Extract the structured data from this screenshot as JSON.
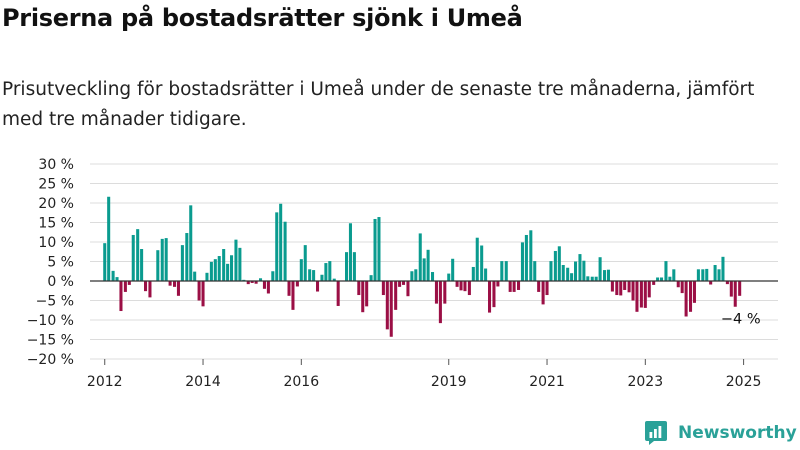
{
  "title": "Priserna på bostadsrätter sjönk i Umeå",
  "subtitle": "Prisutveckling för bostadsrätter i Umeå under de senaste tre månaderna, jämfört med tre månader tidigare.",
  "brand": {
    "name": "Newsworthy"
  },
  "colors": {
    "positive": "#0a9b8f",
    "negative": "#9b0f45",
    "grid": "#dcdcdc",
    "zero_line": "#333333",
    "brand": "#2aa198"
  },
  "chart_data": {
    "type": "bar",
    "unit": "%",
    "ylim": [
      -20,
      30
    ],
    "y_ticks": [
      30,
      25,
      20,
      15,
      10,
      5,
      0,
      -5,
      -10,
      -15,
      -20
    ],
    "y_tick_labels": [
      "30 %",
      "25 %",
      "20 %",
      "15 %",
      "10 %",
      "5 %",
      "0 %",
      "−5 %",
      "−10 %",
      "−15 %",
      "−20 %"
    ],
    "x_tick_labels": [
      "2012",
      "2014",
      "2016",
      "2019",
      "2021",
      "2023",
      "2025"
    ],
    "x_tick_positions": [
      2012,
      2014,
      2016,
      2019,
      2021,
      2023,
      2025
    ],
    "x_range": [
      2011.7,
      2025.7
    ],
    "bar_width_years": 0.062,
    "annotation": {
      "text": "−4 %",
      "x": 2024.92,
      "y": -4
    },
    "x": [
      2012.0,
      2012.08,
      2012.17,
      2012.25,
      2012.33,
      2012.42,
      2012.5,
      2012.58,
      2012.67,
      2012.75,
      2012.83,
      2012.92,
      2013.0,
      2013.08,
      2013.17,
      2013.25,
      2013.33,
      2013.42,
      2013.5,
      2013.58,
      2013.67,
      2013.75,
      2013.83,
      2013.92,
      2014.0,
      2014.08,
      2014.17,
      2014.25,
      2014.33,
      2014.42,
      2014.5,
      2014.58,
      2014.67,
      2014.75,
      2014.83,
      2014.92,
      2015.0,
      2015.08,
      2015.17,
      2015.25,
      2015.33,
      2015.42,
      2015.5,
      2015.58,
      2015.67,
      2015.75,
      2015.83,
      2015.92,
      2016.0,
      2016.08,
      2016.17,
      2016.25,
      2016.33,
      2016.42,
      2016.5,
      2016.58,
      2016.67,
      2016.75,
      2016.83,
      2016.92,
      2017.0,
      2017.08,
      2017.17,
      2017.25,
      2017.33,
      2017.42,
      2017.5,
      2017.58,
      2017.67,
      2017.75,
      2017.83,
      2017.92,
      2018.0,
      2018.08,
      2018.17,
      2018.25,
      2018.33,
      2018.42,
      2018.5,
      2018.58,
      2018.67,
      2018.75,
      2018.83,
      2018.92,
      2019.0,
      2019.08,
      2019.17,
      2019.25,
      2019.33,
      2019.42,
      2019.5,
      2019.58,
      2019.67,
      2019.75,
      2019.83,
      2019.92,
      2020.0,
      2020.08,
      2020.17,
      2020.25,
      2020.33,
      2020.42,
      2020.5,
      2020.58,
      2020.67,
      2020.75,
      2020.83,
      2020.92,
      2021.0,
      2021.08,
      2021.17,
      2021.25,
      2021.33,
      2021.42,
      2021.5,
      2021.58,
      2021.67,
      2021.75,
      2021.83,
      2021.92,
      2022.0,
      2022.08,
      2022.17,
      2022.25,
      2022.33,
      2022.42,
      2022.5,
      2022.58,
      2022.67,
      2022.75,
      2022.83,
      2022.92,
      2023.0,
      2023.08,
      2023.17,
      2023.25,
      2023.33,
      2023.42,
      2023.5,
      2023.58,
      2023.67,
      2023.75,
      2023.83,
      2023.92,
      2024.0,
      2024.08,
      2024.17,
      2024.25,
      2024.33,
      2024.42,
      2024.5,
      2024.58,
      2024.67,
      2024.75,
      2024.83,
      2024.92
    ],
    "values": [
      9.7,
      21.6,
      2.6,
      1.0,
      -7.7,
      -2.8,
      -1.0,
      11.8,
      13.3,
      8.2,
      -2.6,
      -4.2,
      0,
      7.9,
      10.8,
      11.0,
      -1.2,
      -1.5,
      -3.8,
      9.2,
      12.3,
      19.4,
      2.4,
      -5.0,
      -6.5,
      2.1,
      4.9,
      5.6,
      6.4,
      8.2,
      4.4,
      6.6,
      10.6,
      8.5,
      0.3,
      -0.8,
      -0.5,
      -0.7,
      0.7,
      -2.0,
      -3.2,
      2.5,
      17.6,
      19.8,
      15.2,
      -3.8,
      -7.4,
      -1.4,
      5.6,
      9.2,
      3.0,
      2.8,
      -2.7,
      1.6,
      4.6,
      5.1,
      0.6,
      -6.4,
      0,
      7.4,
      14.8,
      7.4,
      -3.6,
      -8.0,
      -6.5,
      1.5,
      15.9,
      16.4,
      -3.6,
      -12.4,
      -14.3,
      -7.4,
      -1.5,
      -1.0,
      -3.9,
      2.5,
      3.0,
      12.2,
      5.8,
      8.0,
      2.3,
      -5.8,
      -10.8,
      -5.8,
      1.9,
      5.7,
      -1.5,
      -2.4,
      -2.6,
      -3.6,
      3.6,
      11.1,
      9.1,
      3.2,
      -8.1,
      -6.7,
      -1.4,
      5.1,
      5.1,
      -2.8,
      -2.8,
      -2.3,
      9.9,
      11.8,
      13.0,
      5.1,
      -2.8,
      -6.0,
      -3.6,
      5.1,
      7.7,
      8.9,
      4.1,
      3.4,
      2.0,
      5.0,
      6.9,
      5.2,
      1.2,
      1.1,
      1.1,
      6.1,
      2.8,
      2.9,
      -2.7,
      -3.6,
      -3.7,
      -2.3,
      -2.9,
      -5.0,
      -7.9,
      -6.8,
      -6.9,
      -4.2,
      -1.0,
      0.9,
      0.9,
      5.1,
      1.1,
      3.0,
      -1.6,
      -3.1,
      -9.1,
      -7.9,
      -5.6,
      3.0,
      3.0,
      3.1,
      -0.9,
      4.1,
      3.0,
      6.2,
      -0.8,
      -4.0,
      -6.6,
      -3.8
    ]
  }
}
